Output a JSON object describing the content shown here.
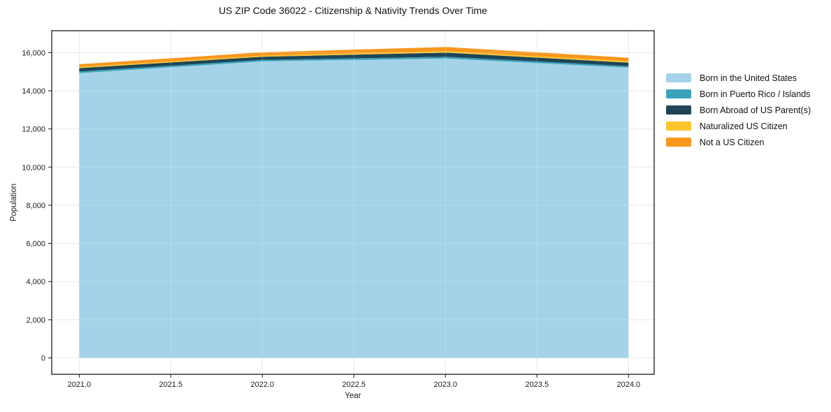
{
  "chart_data": {
    "type": "area",
    "stacked": true,
    "title": "US ZIP Code 36022 - Citizenship & Nativity Trends Over Time",
    "xlabel": "Year",
    "ylabel": "Population",
    "x": [
      2021,
      2022,
      2023,
      2024
    ],
    "series": [
      {
        "name": "Born in the United States",
        "color": "#A4D3E9",
        "values": [
          14920,
          15540,
          15690,
          15215
        ]
      },
      {
        "name": "Born in Puerto Rico / Islands",
        "color": "#39A3BC",
        "values": [
          90,
          75,
          90,
          75
        ]
      },
      {
        "name": "Born Abroad of US Parent(s)",
        "color": "#1F4557",
        "values": [
          180,
          165,
          220,
          185
        ]
      },
      {
        "name": "Naturalized US Citizen",
        "color": "#FCC42D",
        "values": [
          55,
          55,
          75,
          75
        ]
      },
      {
        "name": "Not a US Citizen",
        "color": "#F7971E",
        "values": [
          145,
          180,
          220,
          180
        ]
      }
    ],
    "totals": [
      15390,
      16015,
      16295,
      15730
    ],
    "xticks": [
      {
        "v": 2021.0,
        "label": "2021.0"
      },
      {
        "v": 2021.5,
        "label": "2021.5"
      },
      {
        "v": 2022.0,
        "label": "2022.0"
      },
      {
        "v": 2022.5,
        "label": "2022.5"
      },
      {
        "v": 2023.0,
        "label": "2023.0"
      },
      {
        "v": 2023.5,
        "label": "2023.5"
      },
      {
        "v": 2024.0,
        "label": "2024.0"
      }
    ],
    "yticks": [
      {
        "v": 0,
        "label": "0"
      },
      {
        "v": 2000,
        "label": "2,000"
      },
      {
        "v": 4000,
        "label": "4,000"
      },
      {
        "v": 6000,
        "label": "6,000"
      },
      {
        "v": 8000,
        "label": "8,000"
      },
      {
        "v": 10000,
        "label": "10,000"
      },
      {
        "v": 12000,
        "label": "12,000"
      },
      {
        "v": 14000,
        "label": "14,000"
      },
      {
        "v": 16000,
        "label": "16,000"
      }
    ],
    "xlim": [
      2020.85,
      2024.14
    ],
    "ylim": [
      -858,
      17146
    ],
    "grid": true,
    "legend_position": "right-outside"
  }
}
